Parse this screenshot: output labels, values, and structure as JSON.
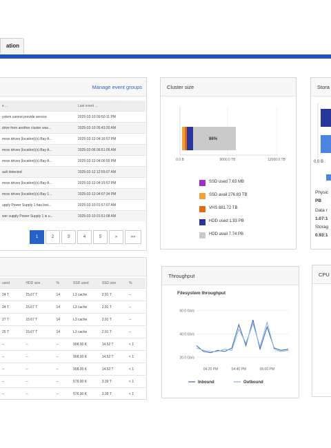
{
  "tab": {
    "label": "ation"
  },
  "events": {
    "manage_link": "Manage event groups",
    "headers": [
      "e ...",
      "Last event ..."
    ],
    "rows": [
      [
        "ystem cannot provide service",
        "2025-02-10 09:50:11 PM"
      ],
      [
        "drive from another cluster was...",
        "2025-02-10 05:43:20 AM"
      ],
      [
        "more drives (location)(s) Bay A...",
        "2025-02-13 04:16:57 PM"
      ],
      [
        "more drives (location)(s) Bay A...",
        "2025-02-06 06:51:05 AM"
      ],
      [
        "more drives (location)(s) Bay A...",
        "2025-02-13 04:06:55 PM"
      ],
      [
        "ault detected",
        "2025-02-12 12:55:07 AM"
      ],
      [
        "more drives (location)(s) Bay A...",
        "2025-02-13 04:15:57 PM"
      ],
      [
        "more drives (location)(s) Bay 1...",
        "2025-02-13 04:07:34 PM"
      ],
      [
        "upply Power Supply 1 has lost...",
        "2025-02-10 01:57:07 AM"
      ],
      [
        "wer supply Power Supply 1 is u...",
        "2025-02-10 01:51:08 AM"
      ]
    ],
    "pages": [
      "1",
      "2",
      "3",
      "4",
      "5",
      "»",
      "»»"
    ]
  },
  "cluster_size": {
    "title": "Cluster size",
    "bar_label": "86%",
    "axis_ticks": [
      "0.0 B",
      "9000.0 TB",
      "12000.0 TB"
    ],
    "legend": [
      {
        "label": "SSD used 7.63 MB",
        "color": "#9b30c8"
      },
      {
        "label": "SSD avail 276.83 TB",
        "color": "#f0a13c"
      },
      {
        "label": "VHS 881.72 TB",
        "color": "#e46b10"
      },
      {
        "label": "HDD used 1.93 PB",
        "color": "#26369a"
      },
      {
        "label": "HDD avail 7.74 PB",
        "color": "#c9c9c9"
      }
    ],
    "chart_data": {
      "type": "bar",
      "orientation": "horizontal-stacked",
      "series": [
        {
          "name": "SSD used",
          "value": 0.0
        },
        {
          "name": "SSD avail",
          "value": 276.83,
          "unit": "TB"
        },
        {
          "name": "VHS",
          "value": 881.72,
          "unit": "TB"
        },
        {
          "name": "HDD used",
          "value": 1.93,
          "unit": "PB"
        },
        {
          "name": "HDD avail",
          "value": 7.74,
          "unit": "PB"
        }
      ],
      "annotation": "86%"
    }
  },
  "storage": {
    "title": "Stora",
    "axis_label": "0.0 B",
    "lines": [
      "Physic",
      "PB",
      "Data r",
      "1.07:1",
      "Storag",
      "0.93:1"
    ]
  },
  "storage_table": {
    "headers": [
      "used",
      "HDD size",
      "%",
      "SSD used",
      "SSD size",
      "%"
    ],
    "rows": [
      [
        "24 T",
        "15.67 T",
        "14",
        "L3 cache",
        "2.91 T",
        "--"
      ],
      [
        "24 T",
        "15.67 T",
        "14",
        "L3 cache",
        "2.91 T",
        "--"
      ],
      [
        "27 T",
        "15.67 T",
        "14",
        "L3 cache",
        "2.91 T",
        "--"
      ],
      [
        "25 T",
        "15.67 T",
        "14",
        "L3 cache",
        "2.91 T",
        "--"
      ],
      [
        "--",
        "--",
        "--",
        "908.00 K",
        "14.52 T",
        "< 1"
      ],
      [
        "--",
        "--",
        "--",
        "908.00 K",
        "14.52 T",
        "< 1"
      ],
      [
        "--",
        "--",
        "--",
        "908.00 K",
        "14.52 T",
        "< 1"
      ],
      [
        "--",
        "--",
        "--",
        "576.00 K",
        "3.39 T",
        "< 1"
      ],
      [
        "--",
        "--",
        "--",
        "576.00 K",
        "3.39 T",
        "< 1"
      ]
    ]
  },
  "throughput": {
    "title": "Throughput",
    "chart_title": "Filesystem throughput",
    "y_ticks": [
      "60.0 Gb/s",
      "40.0 Gb/s",
      "20.0 Gb/s"
    ],
    "x_ticks": [
      "04:20 PM",
      "04:40 PM",
      "05:00 PM"
    ],
    "legend": [
      "Inbound",
      "Outbound"
    ],
    "chart_data": {
      "type": "line",
      "x": [
        "04:10",
        "04:15",
        "04:20",
        "04:25",
        "04:30",
        "04:35",
        "04:40",
        "04:45",
        "04:50",
        "04:55",
        "05:00",
        "05:05",
        "05:10",
        "05:15"
      ],
      "series": [
        {
          "name": "Inbound",
          "values": [
            30,
            25,
            24,
            26,
            25,
            28,
            48,
            30,
            52,
            27,
            46,
            28,
            26,
            27
          ]
        },
        {
          "name": "Outbound",
          "values": [
            28,
            26,
            25,
            25,
            27,
            26,
            44,
            32,
            49,
            29,
            50,
            27,
            25,
            26
          ]
        }
      ],
      "ylim": [
        15,
        65
      ]
    }
  },
  "cpu": {
    "title": "CPU"
  }
}
